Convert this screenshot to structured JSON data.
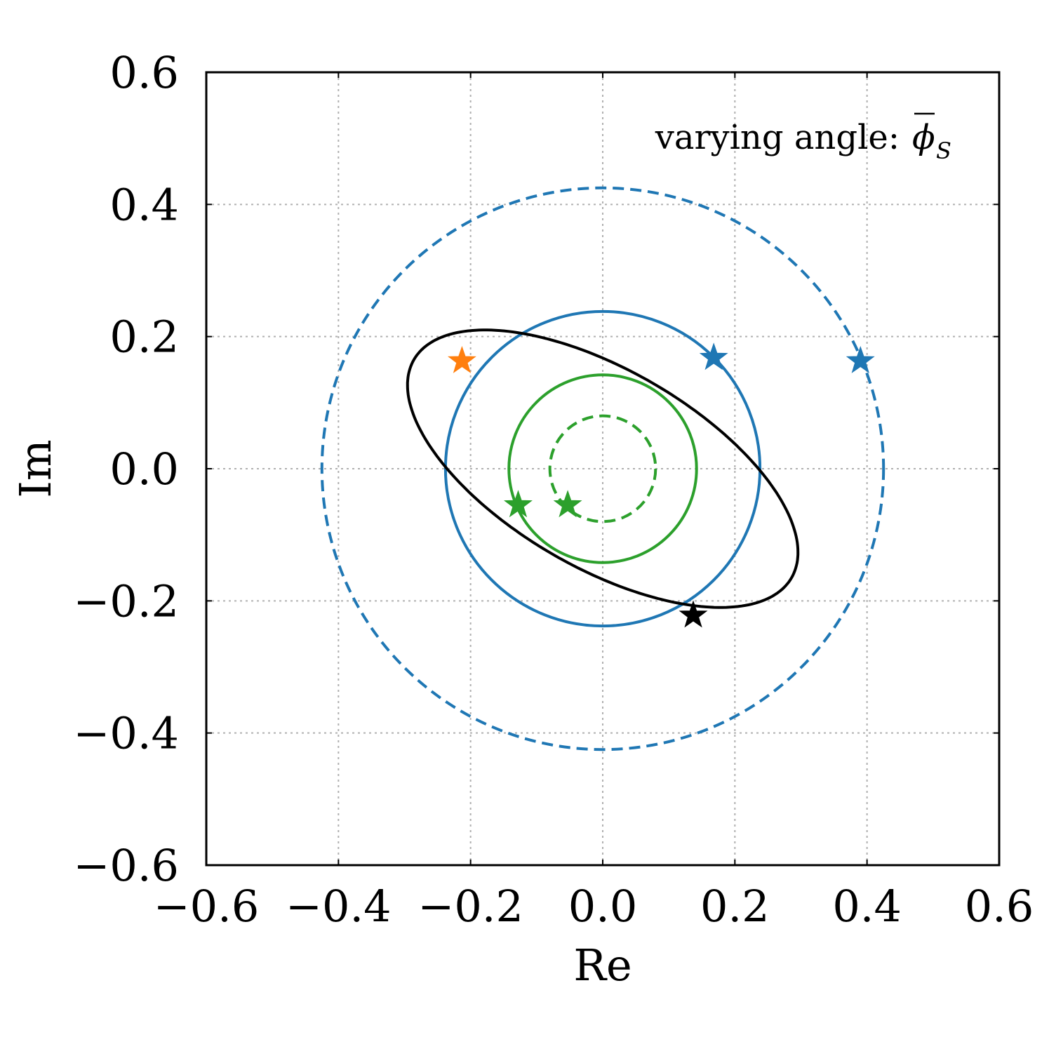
{
  "chart_data": {
    "type": "scatter",
    "title": "",
    "xlabel": "Re",
    "ylabel": "Im",
    "xlim": [
      -0.6,
      0.6
    ],
    "ylim": [
      -0.6,
      0.6
    ],
    "xticks": [
      -0.6,
      -0.4,
      -0.2,
      0.0,
      0.2,
      0.4,
      0.6
    ],
    "yticks": [
      -0.6,
      -0.4,
      -0.2,
      0.0,
      0.2,
      0.4,
      0.6
    ],
    "xtick_labels": [
      "−0.6",
      "−0.4",
      "−0.2",
      "0.0",
      "0.2",
      "0.4",
      "0.6"
    ],
    "ytick_labels": [
      "−0.6",
      "−0.4",
      "−0.2",
      "0.0",
      "0.2",
      "0.4",
      "0.6"
    ],
    "grid": true,
    "annotation": {
      "prefix": "varying angle:",
      "symbol": "ϕ",
      "subscript": "S"
    },
    "colors": {
      "blue": "#1f77b4",
      "green": "#2ca02c",
      "orange": "#ff7f0e",
      "black": "#000000",
      "grid": "#b0b0b0"
    },
    "curves": [
      {
        "shape": "circle",
        "center": [
          0.0,
          0.0
        ],
        "radius": 0.425,
        "style": "dashed",
        "color": "#1f77b4"
      },
      {
        "shape": "circle",
        "center": [
          0.0,
          0.0
        ],
        "radius": 0.238,
        "style": "solid",
        "color": "#1f77b4"
      },
      {
        "shape": "circle",
        "center": [
          0.0,
          0.0
        ],
        "radius": 0.142,
        "style": "solid",
        "color": "#2ca02c"
      },
      {
        "shape": "circle",
        "center": [
          0.0,
          0.0
        ],
        "radius": 0.08,
        "style": "dashed",
        "color": "#2ca02c"
      },
      {
        "shape": "ellipse",
        "center": [
          0.0,
          0.0
        ],
        "semi_major": 0.33,
        "semi_minor": 0.15,
        "rotation_deg": -30,
        "style": "solid",
        "color": "#000000"
      }
    ],
    "markers": [
      {
        "x": -0.213,
        "y": 0.163,
        "color": "#ff7f0e"
      },
      {
        "x": 0.168,
        "y": 0.168,
        "color": "#1f77b4"
      },
      {
        "x": 0.39,
        "y": 0.163,
        "color": "#1f77b4"
      },
      {
        "x": -0.128,
        "y": -0.055,
        "color": "#2ca02c"
      },
      {
        "x": -0.053,
        "y": -0.055,
        "color": "#2ca02c"
      },
      {
        "x": 0.137,
        "y": -0.222,
        "color": "#000000"
      }
    ]
  }
}
